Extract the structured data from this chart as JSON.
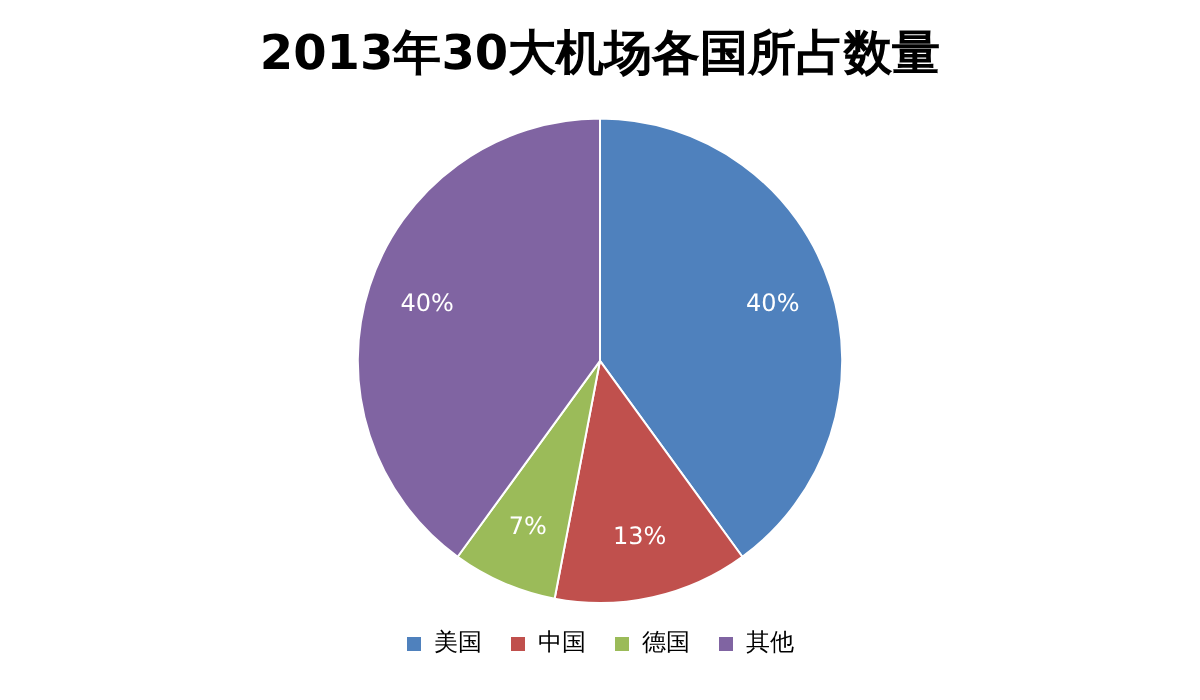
{
  "chart_data": {
    "type": "pie",
    "title": "2013年30大机场各国所占数量",
    "categories": [
      "美国",
      "中国",
      "德国",
      "其他"
    ],
    "values": [
      40,
      13,
      7,
      40
    ],
    "colors": [
      "#4f81bd",
      "#c0504d",
      "#9bbb59",
      "#8064a2"
    ],
    "value_labels": [
      "40%",
      "13%",
      "7%",
      "40%"
    ],
    "legend": "bottom"
  }
}
